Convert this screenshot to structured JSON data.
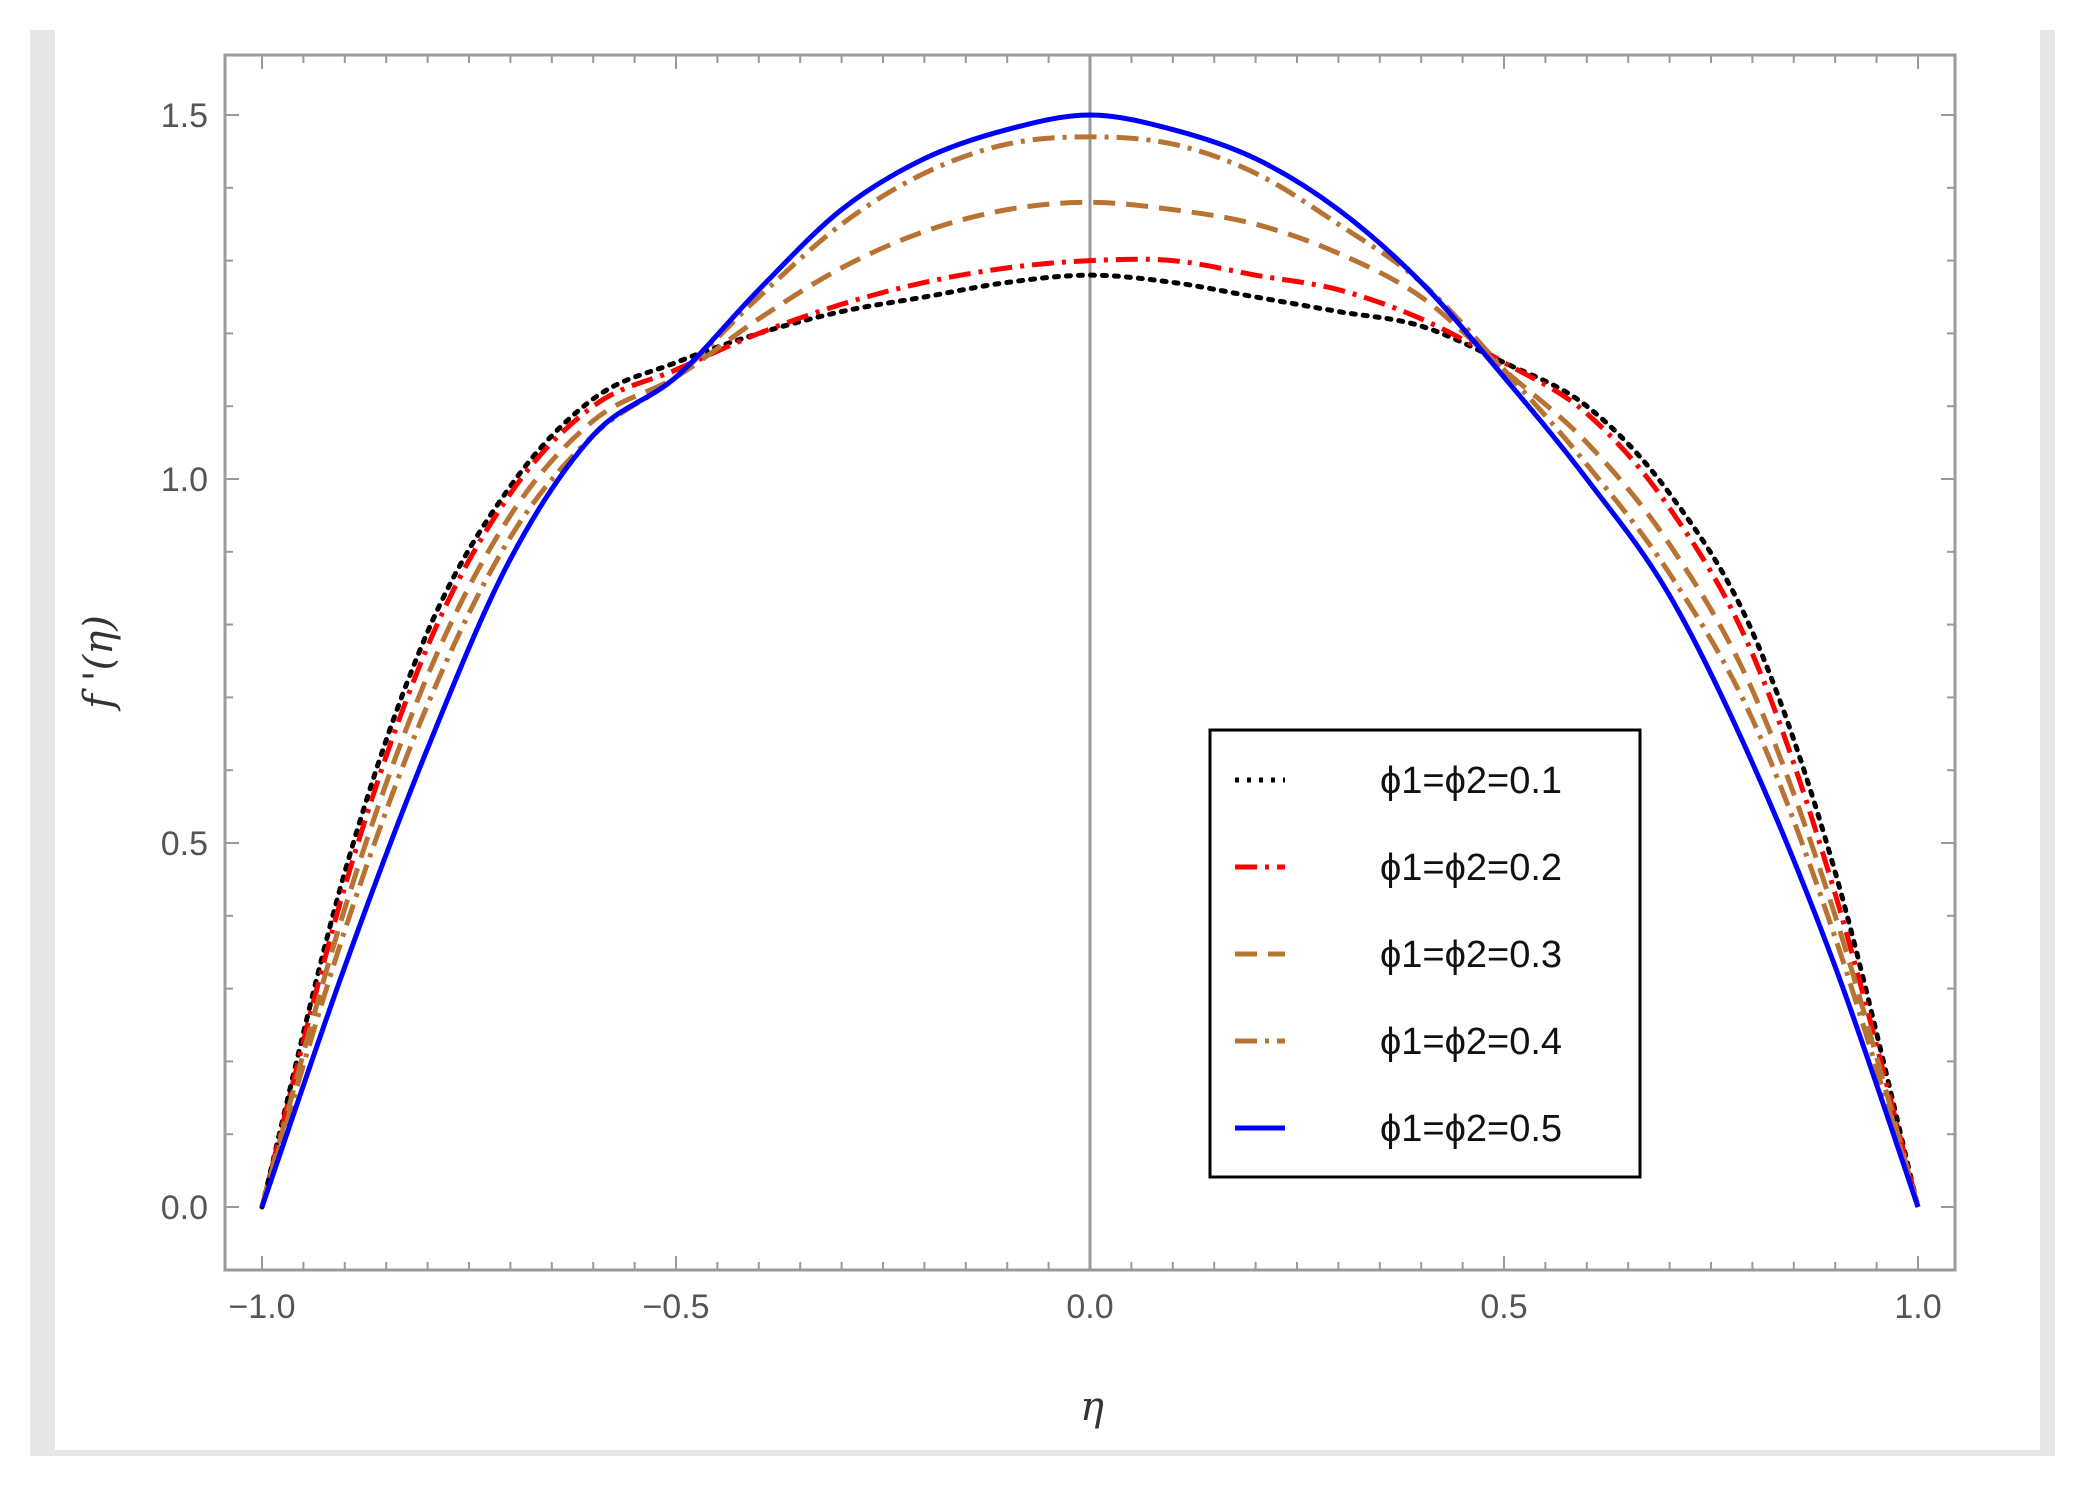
{
  "chart_data": {
    "type": "line",
    "title": "",
    "xlabel": "η",
    "ylabel": "f '(η)",
    "xlim": [
      -1.0,
      1.0
    ],
    "ylim": [
      -0.08,
      1.6
    ],
    "x_ticks": [
      -1.0,
      -0.5,
      0.0,
      0.5,
      1.0
    ],
    "x_tick_labels": [
      "-1.0",
      "-0.5",
      "0.0",
      "0.5",
      "1.0"
    ],
    "y_ticks": [
      0.0,
      0.5,
      1.0,
      1.5
    ],
    "y_tick_labels": [
      "0.0",
      "0.5",
      "1.0",
      "1.5"
    ],
    "grid": false,
    "legend_position": "bottom-right",
    "x": [
      -1.0,
      -0.9,
      -0.8,
      -0.7,
      -0.6,
      -0.5,
      -0.4,
      -0.3,
      -0.2,
      -0.1,
      0.0,
      0.1,
      0.2,
      0.3,
      0.4,
      0.5,
      0.6,
      0.7,
      0.8,
      0.9,
      1.0
    ],
    "series": [
      {
        "name": "ϕ1=ϕ2=0.1",
        "color": "#000000",
        "dash": "dotted",
        "values": [
          0.0,
          0.46,
          0.79,
          0.99,
          1.11,
          1.16,
          1.2,
          1.23,
          1.25,
          1.27,
          1.28,
          1.27,
          1.25,
          1.23,
          1.21,
          1.16,
          1.1,
          0.98,
          0.79,
          0.46,
          0.0
        ]
      },
      {
        "name": "ϕ1=ϕ2=0.2",
        "color": "#ff0000",
        "dash": "dash-dot",
        "values": [
          0.0,
          0.44,
          0.77,
          0.98,
          1.1,
          1.15,
          1.2,
          1.24,
          1.27,
          1.29,
          1.3,
          1.3,
          1.28,
          1.26,
          1.22,
          1.16,
          1.09,
          0.96,
          0.76,
          0.43,
          0.0
        ]
      },
      {
        "name": "ϕ1=ϕ2=0.3",
        "color": "#b87333",
        "dash": "dashed",
        "values": [
          0.0,
          0.41,
          0.73,
          0.95,
          1.08,
          1.14,
          1.22,
          1.29,
          1.34,
          1.37,
          1.38,
          1.37,
          1.35,
          1.31,
          1.25,
          1.15,
          1.05,
          0.91,
          0.71,
          0.4,
          0.0
        ]
      },
      {
        "name": "ϕ1=ϕ2=0.4",
        "color": "#b87333",
        "dash": "dash-dot",
        "values": [
          0.0,
          0.38,
          0.69,
          0.92,
          1.06,
          1.14,
          1.25,
          1.35,
          1.42,
          1.46,
          1.47,
          1.46,
          1.42,
          1.35,
          1.27,
          1.15,
          1.02,
          0.87,
          0.67,
          0.37,
          0.0
        ]
      },
      {
        "name": "ϕ1=ϕ2=0.5",
        "color": "#0000ff",
        "dash": "solid",
        "values": [
          0.0,
          0.33,
          0.63,
          0.89,
          1.06,
          1.14,
          1.26,
          1.37,
          1.44,
          1.48,
          1.5,
          1.48,
          1.44,
          1.37,
          1.27,
          1.14,
          1.0,
          0.84,
          0.61,
          0.33,
          0.0
        ]
      }
    ]
  }
}
